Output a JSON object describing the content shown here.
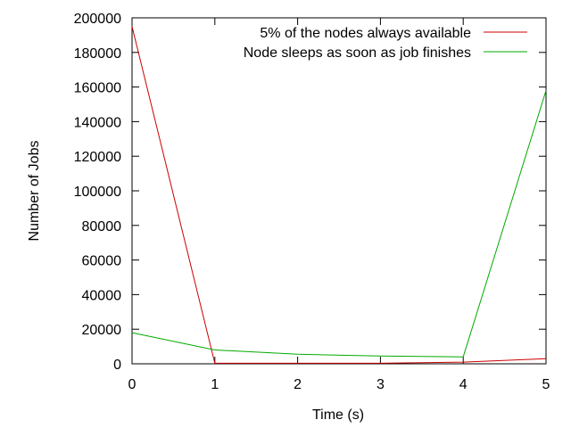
{
  "chart_data": {
    "type": "line",
    "title": "",
    "xlabel": "Time (s)",
    "ylabel": "Number of Jobs",
    "xlim": [
      0,
      5
    ],
    "ylim": [
      0,
      200000
    ],
    "xticks": [
      "0",
      "1",
      "2",
      "3",
      "4",
      "5"
    ],
    "yticks": [
      "0",
      "20000",
      "40000",
      "60000",
      "80000",
      "100000",
      "120000",
      "140000",
      "160000",
      "180000",
      "200000"
    ],
    "grid": false,
    "legend_position": "top-right",
    "series": [
      {
        "name": "5% of the nodes always available",
        "color": "#cc0000",
        "x": [
          0,
          1,
          2,
          3,
          4,
          5
        ],
        "y": [
          195000,
          300,
          300,
          300,
          1000,
          3000
        ]
      },
      {
        "name": "Node sleeps as soon as job finishes",
        "color": "#00aa00",
        "x": [
          0,
          1,
          2,
          3,
          4,
          5
        ],
        "y": [
          18000,
          8000,
          5500,
          4500,
          4000,
          158000
        ]
      }
    ]
  }
}
